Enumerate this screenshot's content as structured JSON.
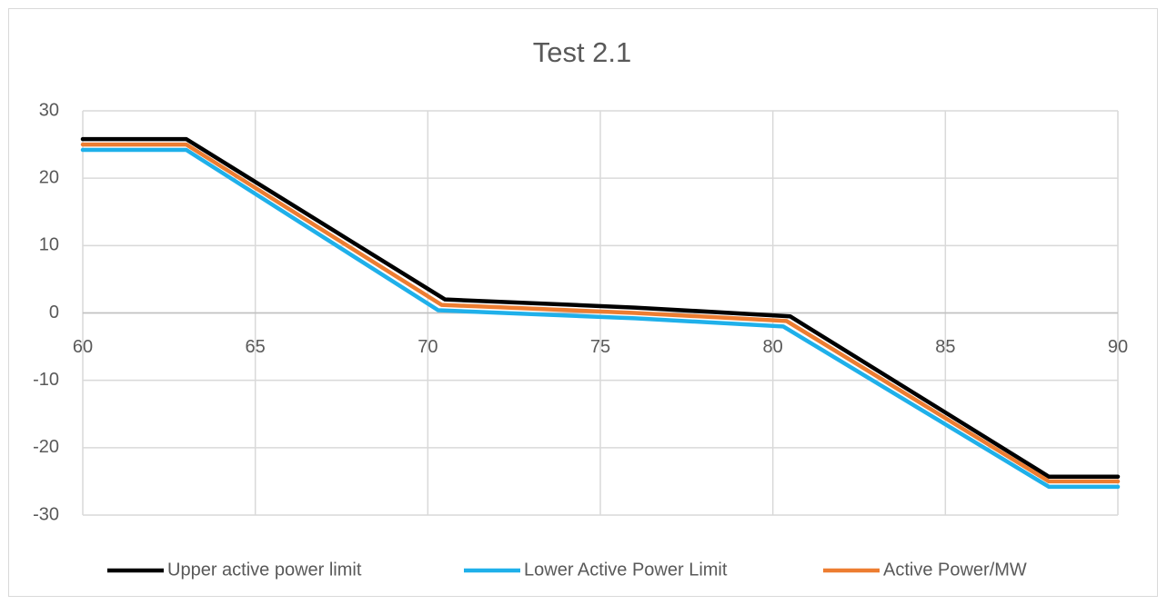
{
  "chart_data": {
    "type": "scatter",
    "title": "Test 2.1",
    "xlim": [
      60,
      90
    ],
    "xticks": [
      60,
      65,
      70,
      75,
      80,
      85,
      90
    ],
    "ylim": [
      -30,
      30
    ],
    "yticks": [
      -30,
      -20,
      -10,
      0,
      10,
      20,
      30
    ],
    "grid": true,
    "legend": "bottom",
    "series": [
      {
        "name": "Upper active power limit",
        "color": "#000000",
        "x": [
          60,
          63,
          70.5,
          76,
          80.5,
          88,
          90
        ],
        "values": [
          25.8,
          25.8,
          2,
          0.8,
          -0.5,
          -24.3,
          -24.3
        ]
      },
      {
        "name": "Lower Active Power Limit",
        "color": "#1fb0ea",
        "x": [
          60,
          63,
          70.3,
          76,
          80.3,
          88,
          90
        ],
        "values": [
          24.2,
          24.2,
          0.4,
          -0.8,
          -2,
          -25.8,
          -25.8
        ]
      },
      {
        "name": "Active Power/MW",
        "color": "#ed7d31",
        "x": [
          60,
          63,
          70.4,
          76,
          80.4,
          88,
          90
        ],
        "values": [
          25,
          25,
          1.2,
          0,
          -1.2,
          -25,
          -25
        ]
      }
    ]
  }
}
